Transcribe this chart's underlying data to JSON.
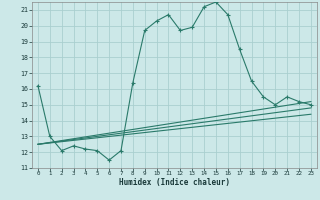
{
  "xlabel": "Humidex (Indice chaleur)",
  "bg_color": "#cce8e8",
  "grid_color": "#aacfcf",
  "line_color": "#2a7a6a",
  "xlim": [
    -0.5,
    23.5
  ],
  "ylim": [
    11,
    21.5
  ],
  "yticks": [
    11,
    12,
    13,
    14,
    15,
    16,
    17,
    18,
    19,
    20,
    21
  ],
  "xticks": [
    0,
    1,
    2,
    3,
    4,
    5,
    6,
    7,
    8,
    9,
    10,
    11,
    12,
    13,
    14,
    15,
    16,
    17,
    18,
    19,
    20,
    21,
    22,
    23
  ],
  "main_x": [
    0,
    1,
    2,
    3,
    4,
    5,
    6,
    7,
    8,
    9,
    10,
    11,
    12,
    13,
    14,
    15,
    16,
    17,
    18,
    19,
    20,
    21,
    22,
    23
  ],
  "main_y": [
    16.2,
    13.0,
    12.1,
    12.4,
    12.2,
    12.1,
    11.5,
    12.1,
    16.4,
    19.7,
    20.3,
    20.7,
    19.7,
    19.9,
    21.2,
    21.5,
    20.7,
    18.5,
    16.5,
    15.5,
    15.0,
    15.5,
    15.2,
    15.0
  ],
  "fan_lines": [
    {
      "x": [
        0,
        23
      ],
      "y": [
        12.5,
        15.2
      ]
    },
    {
      "x": [
        0,
        23
      ],
      "y": [
        12.5,
        14.8
      ]
    },
    {
      "x": [
        0,
        23
      ],
      "y": [
        12.5,
        14.4
      ]
    }
  ]
}
